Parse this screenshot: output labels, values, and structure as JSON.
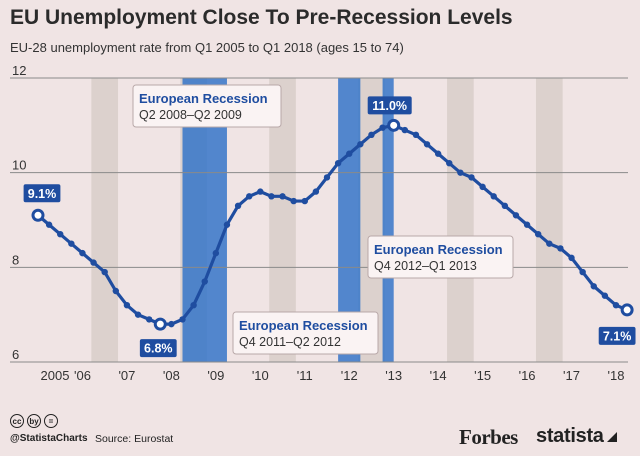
{
  "header": {
    "title": "EU Unemployment Close To Pre-Recession Levels",
    "subtitle": "EU-28 unemployment rate from Q1 2005 to Q1 2018 (ages 15 to 74)"
  },
  "footer": {
    "cc_icons": [
      "cc",
      "by",
      "="
    ],
    "handle": "@StatistaCharts",
    "source": "Source: Eurostat",
    "forbes": "Forbes",
    "statista": "statista"
  },
  "colors": {
    "background": "#f0e4e4",
    "line": "#1f4da0",
    "recession": "#2e72c8",
    "stripe": "#d6cbc6",
    "label_bg": "#1f4da0"
  },
  "chart_data": {
    "type": "line",
    "title": "EU Unemployment Close To Pre-Recession Levels",
    "subtitle": "EU-28 unemployment rate from Q1 2005 to Q1 2018 (ages 15 to 74)",
    "xlabel": "",
    "ylabel": "",
    "ylim": [
      6,
      12
    ],
    "yticks": [
      6,
      8,
      10,
      12
    ],
    "xlim": [
      2005.0,
      2018.0
    ],
    "xticks": [
      {
        "x": 2005,
        "label": "2005"
      },
      {
        "x": 2006,
        "label": "'06"
      },
      {
        "x": 2007,
        "label": "'07"
      },
      {
        "x": 2008,
        "label": "'08"
      },
      {
        "x": 2009,
        "label": "'09"
      },
      {
        "x": 2010,
        "label": "'10"
      },
      {
        "x": 2011,
        "label": "'11"
      },
      {
        "x": 2012,
        "label": "'12"
      },
      {
        "x": 2013,
        "label": "'13"
      },
      {
        "x": 2014,
        "label": "'14"
      },
      {
        "x": 2015,
        "label": "'15"
      },
      {
        "x": 2016,
        "label": "'16"
      },
      {
        "x": 2017,
        "label": "'17"
      },
      {
        "x": 2018,
        "label": "'18"
      }
    ],
    "grid": "horizontal",
    "series": [
      {
        "name": "EU-28 unemployment rate (%)",
        "quarters_from": "Q1 2005",
        "values": [
          9.1,
          8.9,
          8.7,
          8.5,
          8.3,
          8.1,
          7.9,
          7.5,
          7.2,
          7.0,
          6.9,
          6.8,
          6.8,
          6.9,
          7.2,
          7.7,
          8.3,
          8.9,
          9.3,
          9.5,
          9.6,
          9.5,
          9.5,
          9.4,
          9.4,
          9.6,
          9.9,
          10.2,
          10.4,
          10.6,
          10.8,
          10.95,
          11.0,
          10.9,
          10.8,
          10.6,
          10.4,
          10.2,
          10.0,
          9.9,
          9.7,
          9.5,
          9.3,
          9.1,
          8.9,
          8.7,
          8.5,
          8.4,
          8.2,
          7.9,
          7.6,
          7.4,
          7.2,
          7.1
        ]
      }
    ],
    "point_labels": [
      {
        "index": 0,
        "text": "9.1%"
      },
      {
        "index": 11,
        "text": "6.8%"
      },
      {
        "index": 32,
        "text": "11.0%"
      },
      {
        "index": 53,
        "text": "7.1%"
      }
    ],
    "recessions": [
      {
        "label": "European Recession",
        "period": "Q2 2008–Q2 2009",
        "start": 2008.25,
        "end": 2009.25
      },
      {
        "label": "European Recession",
        "period": "Q4 2011–Q2 2012",
        "start": 2011.75,
        "end": 2012.25
      },
      {
        "label": "European Recession",
        "period": "Q4 2012–Q1 2013",
        "start": 2012.75,
        "end": 2013.0
      }
    ]
  }
}
